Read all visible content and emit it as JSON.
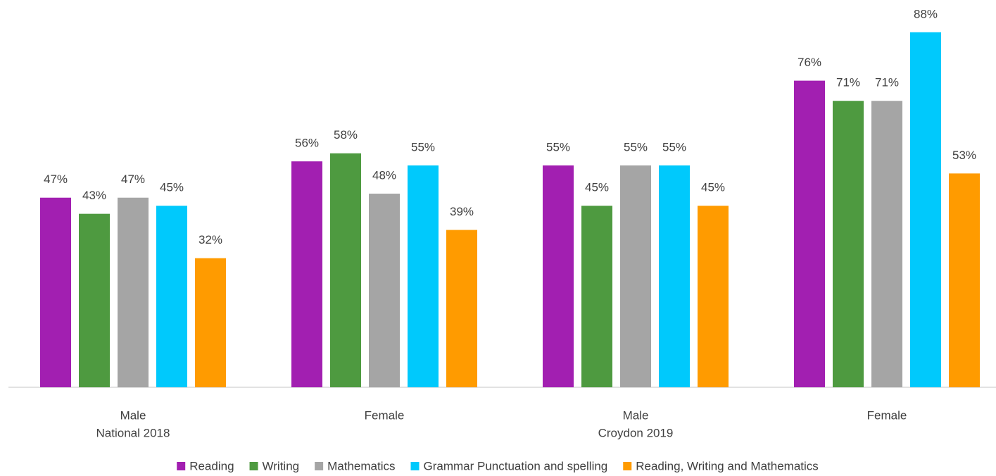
{
  "chart_data": {
    "type": "bar",
    "categories": [
      "Male",
      "Female",
      "Male",
      "Female"
    ],
    "groups": [
      {
        "label": "National 2018",
        "start": 0
      },
      {
        "label": "Croydon 2019",
        "start": 2
      }
    ],
    "series": [
      {
        "name": "Reading",
        "color": "#a21fb1",
        "values": [
          47,
          56,
          55,
          76
        ],
        "value_labels": [
          "47%",
          "56%",
          "55%",
          "76%"
        ]
      },
      {
        "name": "Writing",
        "color": "#4e9a40",
        "values": [
          43,
          58,
          45,
          71
        ],
        "value_labels": [
          "43%",
          "58%",
          "45%",
          "71%"
        ]
      },
      {
        "name": "Mathematics",
        "color": "#a5a5a5",
        "values": [
          47,
          48,
          55,
          71
        ],
        "value_labels": [
          "47%",
          "48%",
          "55%",
          "71%"
        ]
      },
      {
        "name": "Grammar Punctuation and spelling",
        "color": "#00c9fc",
        "values": [
          45,
          55,
          55,
          88
        ],
        "value_labels": [
          "45%",
          "55%",
          "55%",
          "88%"
        ]
      },
      {
        "name": "Reading, Writing and Mathematics",
        "color": "#ff9b00",
        "values": [
          32,
          39,
          45,
          53
        ],
        "value_labels": [
          "32%",
          "39%",
          "45%",
          "53%"
        ]
      }
    ],
    "ylim": [
      0,
      96
    ],
    "legend": "bottom"
  }
}
